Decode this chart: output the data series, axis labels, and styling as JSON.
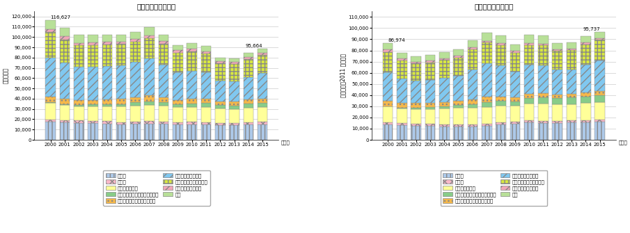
{
  "years": [
    2000,
    2001,
    2002,
    2003,
    2004,
    2005,
    2006,
    2007,
    2008,
    2009,
    2010,
    2011,
    2012,
    2013,
    2014,
    2015
  ],
  "title_nominal": "」名目国内生産額『",
  "title_real": "」実質国内生産額『",
  "ylabel_nominal": "（十億円）",
  "ylabel_real": "（十億円、2011年価格）",
  "nominal": {
    "tsushin": [
      17400,
      16800,
      16500,
      16200,
      15800,
      15000,
      15500,
      15800,
      15500,
      15000,
      15200,
      15000,
      14500,
      14200,
      14800,
      15200
    ],
    "hoso": [
      2500,
      2400,
      2300,
      2300,
      2200,
      2200,
      2300,
      2200,
      2200,
      2100,
      2100,
      2100,
      2000,
      2000,
      2100,
      2100
    ],
    "joho_service": [
      15800,
      14500,
      14000,
      14200,
      14500,
      15000,
      15500,
      16000,
      15500,
      14500,
      14800,
      15000,
      14000,
      13500,
      14000,
      14200
    ],
    "internet": [
      600,
      900,
      1200,
      1500,
      2000,
      2500,
      3000,
      3500,
      3200,
      2800,
      3200,
      3500,
      3500,
      3800,
      4000,
      4200
    ],
    "eizo": [
      5500,
      5200,
      4800,
      4500,
      4800,
      5000,
      5200,
      5500,
      5000,
      4500,
      4500,
      4000,
      3500,
      3500,
      4200,
      4500
    ],
    "ict_seizo": [
      38000,
      35000,
      32000,
      32500,
      32500,
      33000,
      34000,
      36000,
      32000,
      27000,
      27500,
      26000,
      20000,
      20000,
      22000,
      24500
    ],
    "ict_service": [
      25000,
      23000,
      21000,
      21000,
      21000,
      20500,
      20000,
      20000,
      20000,
      19000,
      19000,
      18500,
      17000,
      17000,
      17500,
      18000
    ],
    "ict_kensetsu": [
      3000,
      2800,
      2600,
      2600,
      2500,
      2400,
      2400,
      2500,
      2400,
      2100,
      2100,
      1900,
      1700,
      1700,
      1800,
      1900
    ],
    "kenkyu": [
      8827,
      8200,
      7500,
      7200,
      7000,
      6900,
      7300,
      8200,
      6700,
      5000,
      5500,
      5100,
      3800,
      3500,
      4264,
      4064
    ]
  },
  "real": {
    "tsushin": [
      13500,
      12800,
      12500,
      12200,
      12000,
      12000,
      12000,
      12500,
      13500,
      14500,
      15500,
      15000,
      15200,
      15500,
      15800,
      16000
    ],
    "hoso": [
      2100,
      2000,
      2000,
      1900,
      1900,
      1900,
      1900,
      1900,
      1900,
      1900,
      1900,
      1900,
      1900,
      1900,
      1900,
      1900
    ],
    "joho_service": [
      14000,
      13000,
      13000,
      13500,
      14000,
      14500,
      14500,
      15000,
      15000,
      14000,
      15000,
      15500,
      14500,
      14500,
      15000,
      15500
    ],
    "internet": [
      600,
      900,
      1200,
      1600,
      2000,
      2500,
      3500,
      4500,
      4500,
      4000,
      4800,
      5500,
      5500,
      5800,
      6000,
      6500
    ],
    "eizo": [
      4500,
      4200,
      4000,
      3500,
      3500,
      3800,
      4200,
      4500,
      4000,
      3500,
      3800,
      3800,
      3500,
      3500,
      3800,
      4000
    ],
    "ict_seizo": [
      26000,
      22000,
      20500,
      21000,
      22000,
      22500,
      27000,
      30000,
      28000,
      23000,
      26000,
      25000,
      22000,
      22000,
      25000,
      27000
    ],
    "ict_service": [
      18000,
      16000,
      15000,
      15500,
      16000,
      16500,
      18000,
      18500,
      18000,
      17000,
      18000,
      18000,
      17000,
      17000,
      18000,
      18500
    ],
    "ict_kensetsu": [
      2200,
      2000,
      1800,
      1800,
      1700,
      1700,
      1700,
      1800,
      1700,
      1500,
      1600,
      1500,
      1300,
      1300,
      1400,
      1500
    ],
    "kenkyu": [
      5574,
      4974,
      4674,
      4874,
      5274,
      5274,
      6474,
      7474,
      7074,
      5874,
      7274,
      7174,
      5874,
      5474,
      5874,
      5837
    ]
  },
  "segments": [
    {
      "key": "tsushin",
      "color": "#adc9e9",
      "hatch": "|||",
      "label": "通信業"
    },
    {
      "key": "hoso",
      "color": "#f9b8c8",
      "hatch": "xxx",
      "label": "放送業"
    },
    {
      "key": "joho_service",
      "color": "#ffff99",
      "hatch": "",
      "label": "情報サービス業"
    },
    {
      "key": "internet",
      "color": "#88cc88",
      "hatch": "",
      "label": "インターネット附随サービス業"
    },
    {
      "key": "eizo",
      "color": "#f5b84a",
      "hatch": "...",
      "label": "映像・音声・文字情報制作業"
    },
    {
      "key": "ict_seizo",
      "color": "#80c8f0",
      "hatch": "///",
      "label": "情報通信関連製造業"
    },
    {
      "key": "ict_service",
      "color": "#d8e840",
      "hatch": "+++",
      "label": "情報通信関連サービス業"
    },
    {
      "key": "ict_kensetsu",
      "color": "#f0a8b8",
      "hatch": "///",
      "label": "情報通信関連建設業"
    },
    {
      "key": "kenkyu",
      "color": "#b8e098",
      "hatch": "  ",
      "label": "研究"
    }
  ],
  "ylim": [
    0,
    125000
  ],
  "yticks": [
    0,
    10000,
    20000,
    30000,
    40000,
    50000,
    60000,
    70000,
    80000,
    90000,
    100000,
    110000,
    120000
  ],
  "ytick_labels": [
    "0",
    "10,000",
    "20,000",
    "30,000",
    "40,000",
    "50,000",
    "60,000",
    "70,000",
    "80,000",
    "90,000",
    "100,000",
    "110,000",
    "120,000"
  ]
}
